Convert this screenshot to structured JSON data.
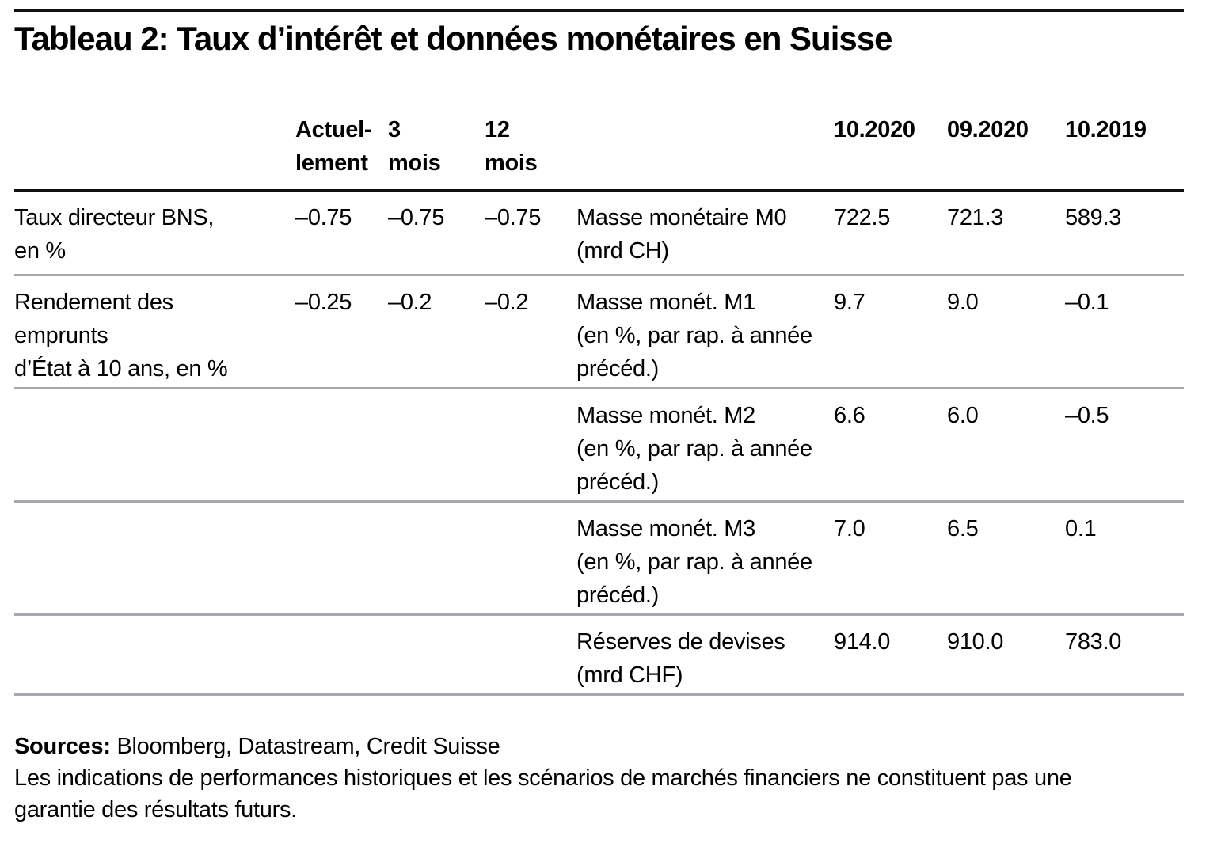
{
  "title": "Tableau 2: Taux d’intérêt et données monétaires en Suisse",
  "table": {
    "columns": {
      "period_current": "Actuel-\nlement",
      "period_3m": "3\nmois",
      "period_12m": "12\nmois",
      "month_1": "10.2020",
      "month_2": "09.2020",
      "month_3": "10.2019"
    },
    "rows": [
      {
        "left_label": "Taux directeur BNS,\nen %",
        "left_values": [
          "–0.75",
          "–0.75",
          "–0.75"
        ],
        "right_label": "Masse monétaire M0\n(mrd CH)",
        "right_values": [
          "722.5",
          "721.3",
          "589.3"
        ]
      },
      {
        "left_label": "Rendement des\nemprunts\nd’État à 10 ans, en %",
        "left_values": [
          "–0.25",
          "–0.2",
          "–0.2"
        ],
        "right_label": "Masse monét. M1\n(en %, par rap. à année\nprécéd.)",
        "right_values": [
          "9.7",
          "9.0",
          "–0.1"
        ]
      },
      {
        "left_label": "",
        "left_values": [
          "",
          "",
          ""
        ],
        "right_label": "Masse monét. M2\n(en %, par rap. à année\nprécéd.)",
        "right_values": [
          "6.6",
          "6.0",
          "–0.5"
        ]
      },
      {
        "left_label": "",
        "left_values": [
          "",
          "",
          ""
        ],
        "right_label": "Masse monét. M3\n(en %, par rap. à année\nprécéd.)",
        "right_values": [
          "7.0",
          "6.5",
          "0.1"
        ]
      },
      {
        "left_label": "",
        "left_values": [
          "",
          "",
          ""
        ],
        "right_label": "Réserves de devises\n(mrd CHF)",
        "right_values": [
          "914.0",
          "910.0",
          "783.0"
        ]
      }
    ]
  },
  "footer": {
    "sources_label": "Sources:",
    "sources_text": " Bloomberg, Datastream, Credit Suisse",
    "disclaimer": "Les indications de performances historiques et les scénarios de marchés financiers ne constituent pas une\ngarantie des résultats futurs."
  },
  "colors": {
    "text": "#000000",
    "rule_black": "#111111",
    "rule_gray": "#a8a8ac",
    "background": "#ffffff"
  }
}
